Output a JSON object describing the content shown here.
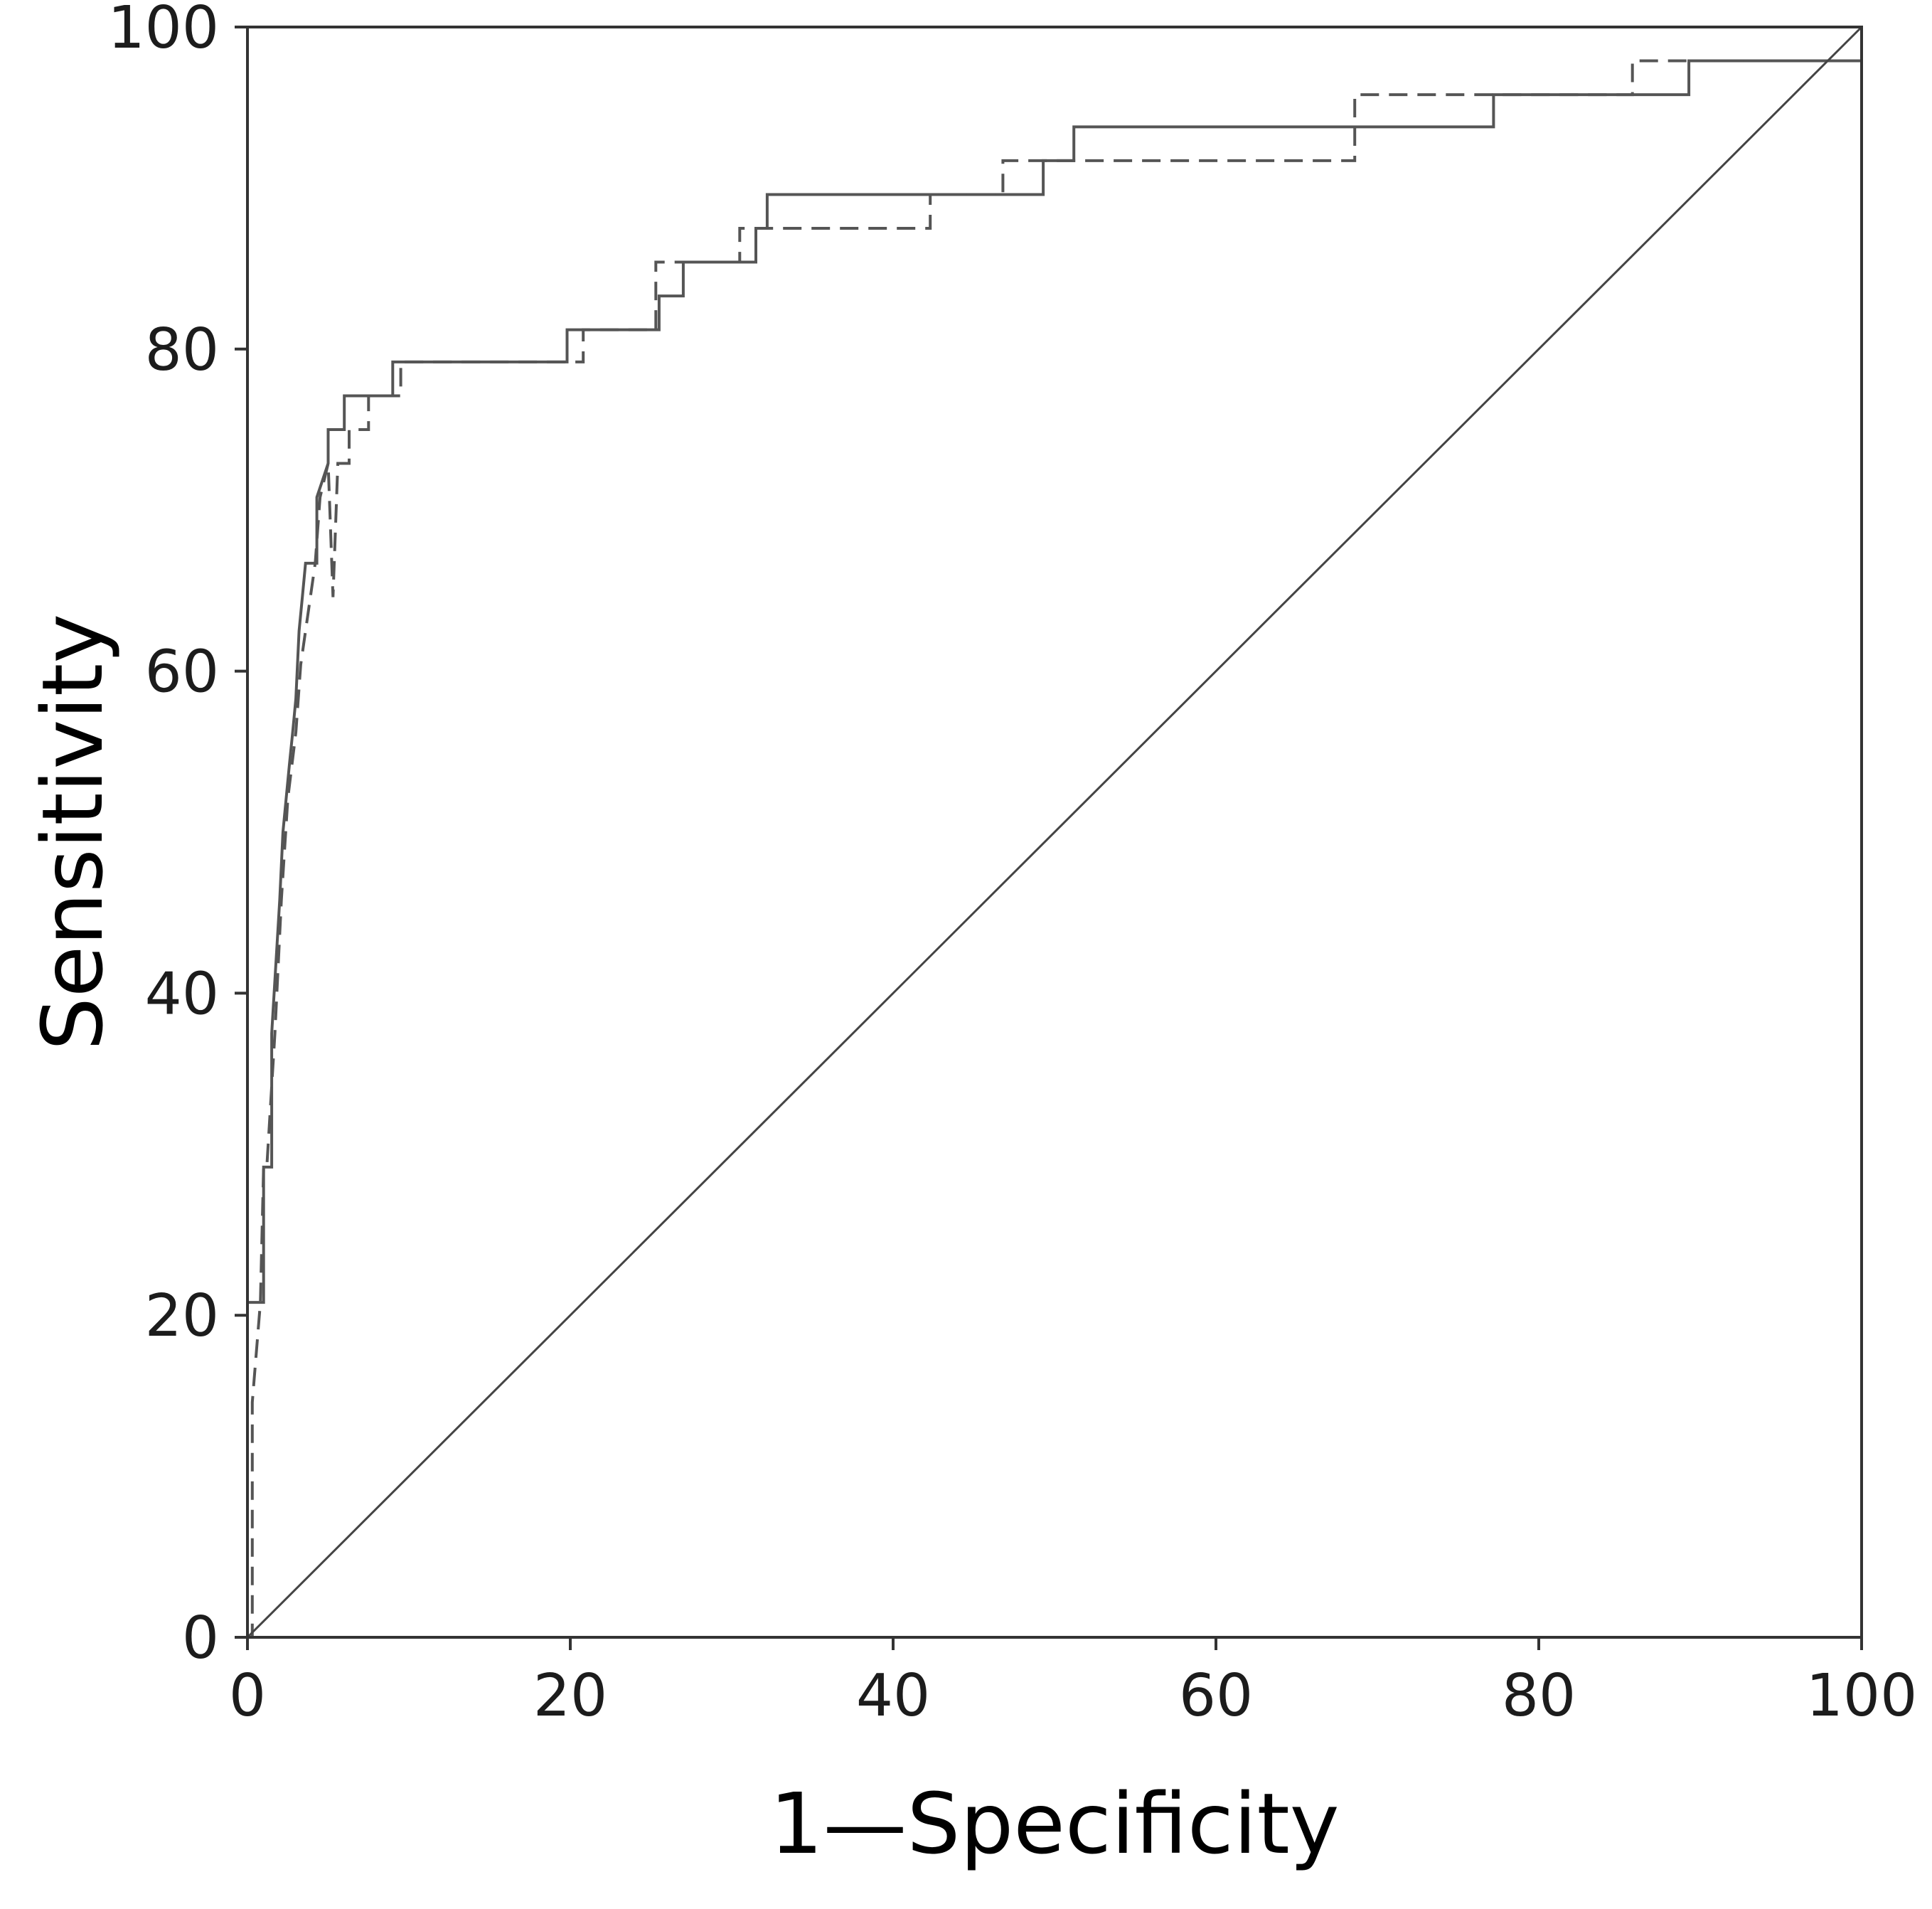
{
  "chart_data": {
    "type": "line",
    "title": "",
    "xlabel": "1—Specificity",
    "ylabel": "Sensitivity",
    "xlim": [
      0,
      100
    ],
    "ylim": [
      0,
      100
    ],
    "xticks": [
      "0",
      "20",
      "40",
      "60",
      "80",
      "100"
    ],
    "yticks": [
      "0",
      "20",
      "40",
      "60",
      "80",
      "100"
    ],
    "grid": false,
    "legend": "none",
    "series": [
      {
        "style": "solid",
        "color": "#555555",
        "x": [
          0,
          0,
          0.5,
          0.5,
          1.0,
          1.0,
          1.5,
          1.5,
          2.0,
          2.2,
          2.6,
          2.8,
          3.0,
          3.2,
          3.4,
          3.6,
          3.6,
          4.3,
          4.3,
          5.0,
          5.0,
          6.0,
          6.0,
          9.0,
          9.0,
          19.8,
          19.8,
          25.5,
          25.5,
          27.0,
          27.0,
          31.5,
          31.5,
          32.2,
          32.2,
          49.3,
          49.3,
          51.2,
          51.2,
          77.2,
          77.2,
          89.3,
          89.3,
          100,
          100
        ],
        "y": [
          0,
          20.8,
          20.8,
          20.8,
          20.8,
          29.2,
          29.2,
          37.5,
          45.8,
          50.0,
          54.2,
          56.2,
          58.3,
          62.5,
          64.6,
          66.7,
          66.7,
          66.7,
          70.8,
          72.9,
          75.0,
          75.0,
          77.1,
          77.1,
          79.2,
          79.2,
          81.2,
          81.2,
          83.3,
          83.3,
          85.4,
          85.4,
          87.5,
          87.5,
          89.6,
          89.6,
          91.7,
          91.7,
          93.8,
          93.8,
          95.8,
          95.8,
          97.9,
          97.9,
          100
        ]
      },
      {
        "style": "dashed",
        "color": "#555555",
        "x": [
          0,
          0.3,
          0.3,
          0.8,
          1.0,
          1.2,
          1.7,
          2.1,
          2.5,
          3.0,
          3.3,
          3.6,
          3.9,
          4.2,
          4.5,
          5.0,
          5.3,
          5.6,
          6.3,
          6.3,
          7.5,
          7.5,
          9.5,
          9.5,
          20.8,
          20.8,
          25.3,
          25.3,
          30.5,
          30.5,
          42.3,
          42.3,
          46.8,
          46.8,
          68.6,
          68.6,
          85.8,
          85.8,
          100,
          100
        ],
        "y": [
          0,
          0,
          14.6,
          20.8,
          29.2,
          29.2,
          37.5,
          45.8,
          52.1,
          56.2,
          60.4,
          62.5,
          64.6,
          66.7,
          70.8,
          72.9,
          64.6,
          72.9,
          72.9,
          75.0,
          75.0,
          77.1,
          77.1,
          79.2,
          79.2,
          81.2,
          81.2,
          85.4,
          85.4,
          87.5,
          87.5,
          89.6,
          89.6,
          91.7,
          91.7,
          95.8,
          95.8,
          97.9,
          97.9,
          100
        ]
      },
      {
        "style": "reference",
        "color": "#444444",
        "x": [
          0,
          100
        ],
        "y": [
          0,
          100
        ]
      }
    ]
  }
}
